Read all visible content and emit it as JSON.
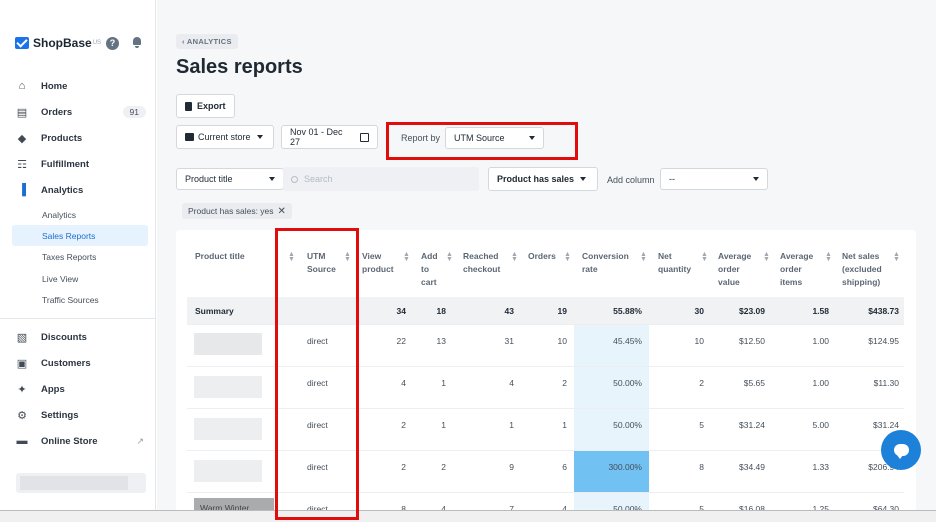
{
  "brand": {
    "name": "ShopBase",
    "sup": "US",
    "help": "?"
  },
  "sidebar": {
    "items": [
      {
        "label": "Home",
        "icon": "home-icon",
        "glyph": "⌂"
      },
      {
        "label": "Orders",
        "icon": "orders-icon",
        "glyph": "▤",
        "badge": "91"
      },
      {
        "label": "Products",
        "icon": "tag-icon",
        "glyph": "◆"
      },
      {
        "label": "Fulfillment",
        "icon": "cart-icon",
        "glyph": "☶"
      },
      {
        "label": "Analytics",
        "icon": "bar-chart-icon",
        "glyph": "▐"
      },
      {
        "label": "Discounts",
        "icon": "discount-icon",
        "glyph": "▧"
      },
      {
        "label": "Customers",
        "icon": "customers-icon",
        "glyph": "▣"
      },
      {
        "label": "Apps",
        "icon": "puzzle-icon",
        "glyph": "✦"
      },
      {
        "label": "Settings",
        "icon": "gear-icon",
        "glyph": "⚙"
      },
      {
        "label": "Online Store",
        "icon": "store-icon",
        "glyph": "▬",
        "ext": "↗"
      }
    ],
    "analytics_sub": [
      "Analytics",
      "Sales Reports",
      "Taxes Reports",
      "Live View",
      "Traffic Sources"
    ]
  },
  "breadcrumb": "‹ ANALYTICS",
  "page_title": "Sales reports",
  "toolbar": {
    "export": "Export",
    "store": "Current store",
    "date_range": "Nov 01 - Dec 27",
    "report_by_label": "Report by",
    "report_by_value": "UTM Source"
  },
  "filters": {
    "product_select": "Product title",
    "search_placeholder": "Search",
    "has_sales_button": "Product has sales",
    "add_column_label": "Add column",
    "add_column_value": "--",
    "chip": "Product has sales: yes",
    "chip_close": "✕"
  },
  "table": {
    "headers": [
      "Product title",
      "UTM\nSource",
      "View\nproduct",
      "Add\nto\ncart",
      "Reached\ncheckout",
      "Orders",
      "Conversion\nrate",
      "Net\nquantity",
      "Average\norder\nvalue",
      "Average\norder\nitems",
      "Net sales\n(excluded\nshipping)"
    ],
    "summary": [
      "Summary",
      "",
      "34",
      "18",
      "43",
      "19",
      "55.88%",
      "30",
      "$23.09",
      "1.58",
      "$438.73"
    ],
    "rows": [
      [
        "",
        "direct",
        "22",
        "13",
        "31",
        "10",
        "45.45%",
        "10",
        "$12.50",
        "1.00",
        "$124.95"
      ],
      [
        "",
        "direct",
        "4",
        "1",
        "4",
        "2",
        "50.00%",
        "2",
        "$5.65",
        "1.00",
        "$11.30"
      ],
      [
        "",
        "direct",
        "2",
        "1",
        "1",
        "1",
        "50.00%",
        "5",
        "$31.24",
        "5.00",
        "$31.24"
      ],
      [
        "",
        "direct",
        "2",
        "2",
        "9",
        "6",
        "300.00%",
        "8",
        "$34.49",
        "1.33",
        "$206.94"
      ],
      [
        "Warm Winter",
        "direct",
        "8",
        "4",
        "7",
        "4",
        "50.00%",
        "5",
        "$16.08",
        "1.25",
        "$64.30"
      ]
    ]
  },
  "colors": {
    "accent": "#1c6fd1",
    "highlight": "#e10c0c",
    "conversion_hot": "#71c1f2"
  }
}
